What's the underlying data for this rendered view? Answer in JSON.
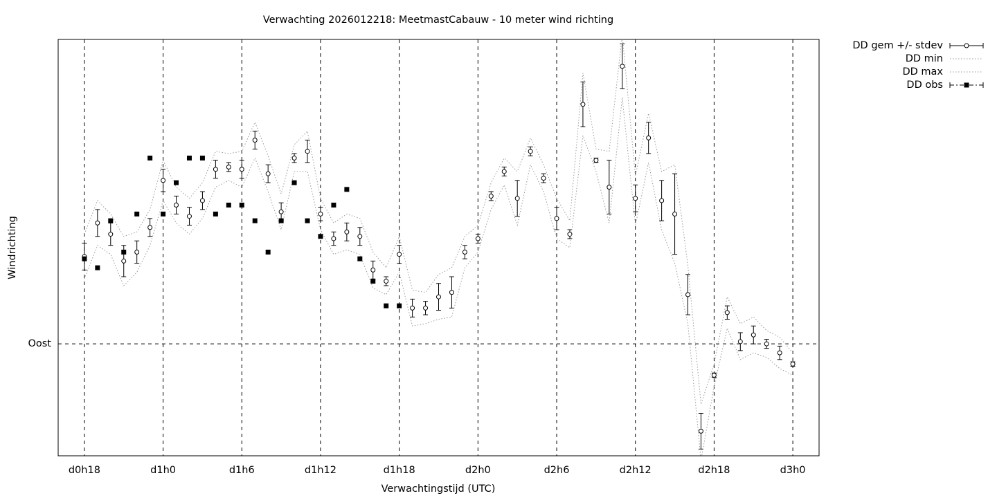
{
  "chart_data": {
    "type": "errorbar-line",
    "title": "Verwachting 2026012218: MeetmastCabauw - 10 meter wind richting",
    "x_label": "Verwachtingstijd (UTC)",
    "y_label": "Windrichting",
    "x": [
      0,
      1,
      2,
      3,
      4,
      5,
      6,
      7,
      8,
      9,
      10,
      11,
      12,
      13,
      14,
      15,
      16,
      17,
      18,
      19,
      20,
      21,
      22,
      23,
      24,
      25,
      26,
      27,
      28,
      29,
      30,
      31,
      32,
      33,
      34,
      35,
      36,
      37,
      38,
      39,
      40,
      41,
      42,
      43,
      44,
      45,
      46,
      47,
      48,
      49,
      50,
      51,
      52,
      53,
      54
    ],
    "xlim": [
      -2,
      56
    ],
    "xticks": [
      {
        "value": 0,
        "label": "d0h18"
      },
      {
        "value": 6,
        "label": "d1h0"
      },
      {
        "value": 12,
        "label": "d1h6"
      },
      {
        "value": 18,
        "label": "d1h12"
      },
      {
        "value": 24,
        "label": "d1h18"
      },
      {
        "value": 30,
        "label": "d2h0"
      },
      {
        "value": 36,
        "label": "d2h6"
      },
      {
        "value": 42,
        "label": "d2h12"
      },
      {
        "value": 48,
        "label": "d2h18"
      },
      {
        "value": 54,
        "label": "d3h0"
      }
    ],
    "ylim": [
      40,
      226
    ],
    "yticks": [
      {
        "value": 90,
        "label": "Oost"
      }
    ],
    "grid": true,
    "legend": "outside-top-right",
    "series": [
      {
        "name": "DD gem +/- stdev",
        "color": "#000000",
        "style": "errorbars",
        "values": [
          129,
          144,
          139,
          127,
          131,
          142,
          163,
          152,
          147,
          154,
          168,
          169,
          168,
          181,
          166,
          149,
          173,
          176,
          148,
          137,
          140,
          138,
          123,
          118,
          130,
          106,
          106,
          111,
          113,
          131,
          137,
          156,
          167,
          155,
          176,
          164,
          146,
          139,
          197,
          172,
          160,
          214,
          155,
          182,
          154,
          148,
          112,
          51,
          76,
          104,
          91,
          94,
          90,
          86,
          81
        ],
        "errors": [
          6,
          6,
          5,
          7,
          5,
          4,
          5,
          4,
          4,
          4,
          4,
          2,
          4,
          4,
          4,
          4,
          2,
          5,
          3,
          3,
          4,
          4,
          4,
          2,
          4,
          4,
          3,
          6,
          7,
          3,
          2,
          2,
          2,
          8,
          2,
          2,
          5,
          2,
          10,
          1,
          12,
          10,
          6,
          7,
          9,
          18,
          9,
          8,
          1,
          3,
          4,
          4,
          2,
          3,
          1
        ]
      },
      {
        "name": "DD min",
        "color": "#999999",
        "style": "dotted",
        "values": [
          119,
          134,
          130,
          116,
          122,
          134,
          154,
          144,
          139,
          146,
          160,
          163,
          160,
          173,
          158,
          141,
          167,
          167,
          141,
          130,
          132,
          130,
          115,
          112,
          122,
          98,
          99,
          101,
          102,
          124,
          131,
          150,
          161,
          143,
          170,
          158,
          137,
          133,
          183,
          167,
          144,
          200,
          143,
          171,
          141,
          126,
          99,
          38,
          71,
          97,
          83,
          86,
          84,
          79,
          76
        ]
      },
      {
        "name": "DD max",
        "color": "#999999",
        "style": "dotted",
        "values": [
          139,
          154,
          148,
          138,
          140,
          150,
          172,
          160,
          155,
          162,
          176,
          175,
          176,
          189,
          174,
          157,
          179,
          185,
          155,
          144,
          148,
          146,
          131,
          124,
          138,
          114,
          113,
          121,
          124,
          138,
          143,
          162,
          173,
          167,
          182,
          170,
          155,
          145,
          211,
          177,
          176,
          228,
          165,
          193,
          167,
          170,
          125,
          63,
          81,
          111,
          99,
          102,
          96,
          93,
          86
        ]
      },
      {
        "name": "DD obs",
        "color": "#000000",
        "style": "squares",
        "values": [
          128,
          124,
          145,
          131,
          148,
          173,
          148,
          162,
          173,
          173,
          148,
          152,
          152,
          145,
          131,
          145,
          162,
          145,
          138,
          152,
          159,
          128,
          118,
          107,
          107,
          null,
          null,
          null,
          null,
          null,
          null,
          null,
          null,
          null,
          null,
          null,
          null,
          null,
          null,
          null,
          null,
          null,
          null,
          null,
          null,
          null,
          null,
          null,
          null,
          null,
          null,
          null,
          null,
          null,
          null
        ]
      }
    ]
  }
}
